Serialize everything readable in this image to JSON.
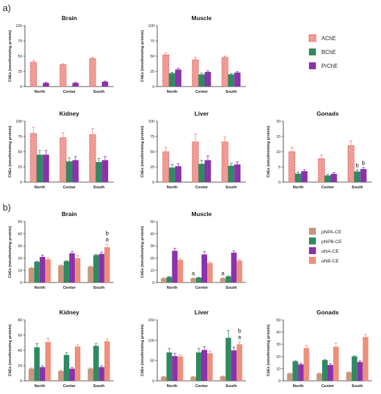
{
  "figure": {
    "panel_a_label": "a)",
    "panel_b_label": "b)"
  },
  "legends": {
    "a": [
      {
        "name": "AChE",
        "color": "#e8837a",
        "pattern": "hatch"
      },
      {
        "name": "BChE",
        "color": "#2f8a63",
        "pattern": "none"
      },
      {
        "name": "PrChE",
        "color": "#8e2fae",
        "pattern": "stripes"
      }
    ],
    "b": [
      {
        "name": "pNPA-CE",
        "color": "#c9977d",
        "pattern": "none"
      },
      {
        "name": "pNPB-CE",
        "color": "#2f8a63",
        "pattern": "none"
      },
      {
        "name": "αNA-CE",
        "color": "#8e2fae",
        "pattern": "stripes"
      },
      {
        "name": "αNB-CE",
        "color": "#ee8f7a",
        "pattern": "none"
      }
    ]
  },
  "chart_data": [
    {
      "panel": "a",
      "type": "bar",
      "title": "Brain",
      "ylabel": "ChEs (nmol/min/mg protein)",
      "ylim": [
        0,
        100
      ],
      "yticks": [
        0,
        25,
        50,
        75,
        100
      ],
      "categories": [
        "North",
        "Center",
        "South"
      ],
      "series": [
        {
          "name": "AChE",
          "values": [
            40,
            36,
            46
          ],
          "errors": [
            3,
            1.5,
            2
          ]
        },
        {
          "name": "BChE",
          "values": [
            0,
            0,
            0
          ],
          "errors": [
            0,
            0,
            0
          ]
        },
        {
          "name": "PrChE",
          "values": [
            6,
            6,
            8
          ],
          "errors": [
            1,
            1,
            1
          ]
        }
      ],
      "annotations": []
    },
    {
      "panel": "a",
      "type": "bar",
      "title": "Muscle",
      "ylabel": "ChEs (nmol/min/mg protein)",
      "ylim": [
        0,
        100
      ],
      "yticks": [
        0,
        25,
        50,
        75,
        100
      ],
      "categories": [
        "North",
        "Center",
        "South"
      ],
      "series": [
        {
          "name": "AChE",
          "values": [
            52,
            44,
            48
          ],
          "errors": [
            3,
            4,
            2
          ]
        },
        {
          "name": "BChE",
          "values": [
            22,
            20,
            20
          ],
          "errors": [
            1.5,
            2,
            1.5
          ]
        },
        {
          "name": "PrChE",
          "values": [
            28,
            24,
            23
          ],
          "errors": [
            2,
            2,
            1.5
          ]
        }
      ],
      "annotations": []
    },
    {
      "panel": "a",
      "type": "bar",
      "title": "Kidney",
      "ylabel": "ChEs (nmol/min/mg protein)",
      "ylim": [
        0,
        100
      ],
      "yticks": [
        0,
        25,
        50,
        75,
        100
      ],
      "categories": [
        "North",
        "Center",
        "South"
      ],
      "series": [
        {
          "name": "AChE",
          "values": [
            80,
            73,
            78
          ],
          "errors": [
            10,
            8,
            10
          ]
        },
        {
          "name": "BChE",
          "values": [
            45,
            34,
            33
          ],
          "errors": [
            7,
            6,
            6
          ]
        },
        {
          "name": "PrChE",
          "values": [
            45,
            36,
            36
          ],
          "errors": [
            7,
            6,
            6
          ]
        }
      ],
      "annotations": []
    },
    {
      "panel": "a",
      "type": "bar",
      "title": "Liver",
      "ylabel": "ChEs (nmol/min/mg protein)",
      "ylim": [
        0,
        100
      ],
      "yticks": [
        0,
        25,
        50,
        75,
        100
      ],
      "categories": [
        "North",
        "Center",
        "South"
      ],
      "series": [
        {
          "name": "AChE",
          "values": [
            50,
            66,
            66
          ],
          "errors": [
            7,
            13,
            8
          ]
        },
        {
          "name": "BChE",
          "values": [
            24,
            30,
            27
          ],
          "errors": [
            5,
            6,
            4
          ]
        },
        {
          "name": "PrChE",
          "values": [
            26,
            36,
            29
          ],
          "errors": [
            4,
            7,
            4
          ]
        }
      ],
      "annotations": []
    },
    {
      "panel": "a",
      "type": "bar",
      "title": "Gonads",
      "ylabel": "ChEs (nmol/min/mg protein)",
      "ylim": [
        0,
        20
      ],
      "yticks": [
        0,
        5,
        10,
        15,
        20
      ],
      "categories": [
        "North",
        "Center",
        "South"
      ],
      "series": [
        {
          "name": "AChE",
          "values": [
            10,
            7.7,
            12
          ],
          "errors": [
            1.5,
            1.2,
            1.5
          ]
        },
        {
          "name": "BChE",
          "values": [
            2.8,
            2.2,
            3.5
          ],
          "errors": [
            0.5,
            0.4,
            0.5
          ]
        },
        {
          "name": "PrChE",
          "values": [
            3.6,
            2.7,
            4.3
          ],
          "errors": [
            0.5,
            0.4,
            0.5
          ]
        }
      ],
      "annotations": [
        {
          "category": 2,
          "series": 1,
          "text": [
            "b"
          ]
        },
        {
          "category": 2,
          "series": 2,
          "text": [
            "b"
          ]
        }
      ]
    },
    {
      "panel": "b",
      "type": "bar",
      "title": "Brain",
      "ylabel": "CbEs (nmol/min/mg protein)",
      "ylim": [
        0,
        50
      ],
      "yticks": [
        0,
        10,
        20,
        30,
        40,
        50
      ],
      "categories": [
        "North",
        "Center",
        "South"
      ],
      "series": [
        {
          "name": "pNPA-CE",
          "values": [
            12,
            14,
            13
          ],
          "errors": [
            0.5,
            0.5,
            0.5
          ]
        },
        {
          "name": "pNPB-CE",
          "values": [
            17,
            17.5,
            22.5
          ],
          "errors": [
            0.5,
            0.5,
            0.5
          ]
        },
        {
          "name": "αNA-CE",
          "values": [
            21,
            24,
            23.5
          ],
          "errors": [
            1.5,
            1.5,
            1.5
          ]
        },
        {
          "name": "αNB-CE",
          "values": [
            19,
            20,
            29
          ],
          "errors": [
            1.5,
            2,
            2.5
          ]
        }
      ],
      "annotations": [
        {
          "category": 2,
          "series": 3,
          "text": [
            "b",
            "a"
          ]
        }
      ]
    },
    {
      "panel": "b",
      "type": "bar",
      "title": "Muscle",
      "ylabel": "CbEs (nmol/min/mg protein)",
      "ylim": [
        0,
        50
      ],
      "yticks": [
        0,
        10,
        20,
        30,
        40,
        50
      ],
      "categories": [
        "North",
        "Center",
        "South"
      ],
      "series": [
        {
          "name": "pNPA-CE",
          "values": [
            3.5,
            3.5,
            3.5
          ],
          "errors": [
            0.3,
            0.3,
            0.3
          ]
        },
        {
          "name": "pNPB-CE",
          "values": [
            4.5,
            4,
            5
          ],
          "errors": [
            0.3,
            0.3,
            0.3
          ]
        },
        {
          "name": "αNA-CE",
          "values": [
            26,
            23,
            24.5
          ],
          "errors": [
            2,
            2.5,
            1.5
          ]
        },
        {
          "name": "αNB-CE",
          "values": [
            18.5,
            16,
            18
          ],
          "errors": [
            1,
            1,
            1
          ]
        }
      ],
      "annotations": [
        {
          "category": 1,
          "series": 0,
          "text": [
            "a"
          ]
        },
        {
          "category": 2,
          "series": 0,
          "text": [
            "a"
          ]
        }
      ]
    },
    {
      "panel": "b",
      "type": "bar",
      "title": "Kidney",
      "ylabel": "CbEs (nmol/min/mg protein)",
      "ylim": [
        0,
        80
      ],
      "yticks": [
        0,
        20,
        40,
        60,
        80
      ],
      "categories": [
        "North",
        "Center",
        "South"
      ],
      "series": [
        {
          "name": "pNPA-CE",
          "values": [
            16,
            13,
            16
          ],
          "errors": [
            1,
            1,
            1
          ]
        },
        {
          "name": "pNPB-CE",
          "values": [
            44,
            34,
            46
          ],
          "errors": [
            5,
            3,
            3
          ]
        },
        {
          "name": "αNA-CE",
          "values": [
            18,
            16,
            18
          ],
          "errors": [
            1.5,
            1.5,
            1.5
          ]
        },
        {
          "name": "αNB-CE",
          "values": [
            51,
            45,
            52
          ],
          "errors": [
            5,
            2.5,
            3
          ]
        }
      ],
      "annotations": []
    },
    {
      "panel": "b",
      "type": "bar",
      "title": "Liver",
      "ylabel": "CbEs (nmol/min/mg protein)",
      "ylim": [
        0,
        150
      ],
      "yticks": [
        0,
        50,
        100,
        150
      ],
      "categories": [
        "North",
        "Center",
        "South"
      ],
      "series": [
        {
          "name": "pNPA-CE",
          "values": [
            10,
            10,
            11
          ],
          "errors": [
            1,
            1,
            1
          ]
        },
        {
          "name": "pNPB-CE",
          "values": [
            70,
            70,
            106
          ],
          "errors": [
            10,
            10,
            18
          ]
        },
        {
          "name": "αNA-CE",
          "values": [
            61,
            76,
            75
          ],
          "errors": [
            7,
            8,
            8
          ]
        },
        {
          "name": "αNB-CE",
          "values": [
            60,
            68,
            90
          ],
          "errors": [
            4,
            5,
            6
          ]
        }
      ],
      "annotations": [
        {
          "category": 2,
          "series": 3,
          "text": [
            "b",
            "a"
          ]
        }
      ]
    },
    {
      "panel": "b",
      "type": "bar",
      "title": "Gonads",
      "ylabel": "CbEs (nmol/min/mg protein)",
      "ylim": [
        0,
        50
      ],
      "yticks": [
        0,
        10,
        20,
        30,
        40,
        50
      ],
      "categories": [
        "North",
        "Center",
        "South"
      ],
      "series": [
        {
          "name": "pNPA-CE",
          "values": [
            6,
            6,
            7
          ],
          "errors": [
            0.4,
            0.4,
            0.4
          ]
        },
        {
          "name": "pNPB-CE",
          "values": [
            16,
            17,
            20
          ],
          "errors": [
            0.5,
            0.5,
            0.5
          ]
        },
        {
          "name": "αNA-CE",
          "values": [
            13.5,
            13,
            15.5
          ],
          "errors": [
            1,
            1,
            1
          ]
        },
        {
          "name": "αNB-CE",
          "values": [
            27,
            28,
            36
          ],
          "errors": [
            2,
            3,
            2
          ]
        }
      ],
      "annotations": []
    }
  ]
}
